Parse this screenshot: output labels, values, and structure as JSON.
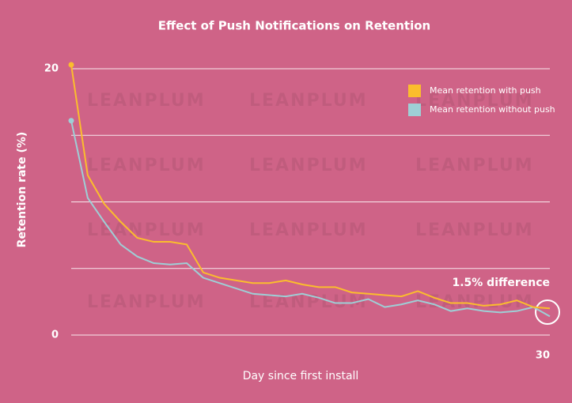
{
  "chart_data": {
    "type": "line",
    "title": "Effect of Push Notifications on Retention",
    "xlabel": "Day since first install",
    "ylabel": "Retention rate (%)",
    "annotation": "1.5% difference",
    "watermark": "LEANPLUM",
    "x": [
      1,
      2,
      3,
      4,
      5,
      6,
      7,
      8,
      9,
      10,
      11,
      12,
      13,
      14,
      15,
      16,
      17,
      18,
      19,
      20,
      21,
      22,
      23,
      24,
      25,
      26,
      27,
      28,
      29,
      30
    ],
    "series": [
      {
        "name": "Mean retention with push",
        "color": "#fbbd2d",
        "values": [
          20.3,
          12.0,
          9.85,
          8.5,
          7.3,
          7.0,
          7.0,
          6.8,
          4.7,
          4.3,
          4.1,
          3.9,
          3.9,
          4.1,
          3.8,
          3.6,
          3.6,
          3.2,
          3.1,
          3.0,
          2.9,
          3.3,
          2.8,
          2.4,
          2.4,
          2.2,
          2.3,
          2.6,
          2.1,
          2.0
        ]
      },
      {
        "name": "Mean retention without push",
        "color": "#9ecfd6",
        "values": [
          16.1,
          10.3,
          8.5,
          6.8,
          5.9,
          5.4,
          5.3,
          5.4,
          4.3,
          3.9,
          3.5,
          3.1,
          3.0,
          2.9,
          3.1,
          2.8,
          2.4,
          2.4,
          2.7,
          2.1,
          2.3,
          2.6,
          2.3,
          1.8,
          2.0,
          1.8,
          1.7,
          1.8,
          2.1,
          1.4
        ]
      }
    ],
    "xlim": [
      1,
      30
    ],
    "xticks": [
      30
    ],
    "ylim": [
      0,
      20
    ],
    "yticks": [
      0,
      20
    ],
    "ygrid": [
      5,
      10,
      15,
      20
    ],
    "legend": "upper right"
  }
}
